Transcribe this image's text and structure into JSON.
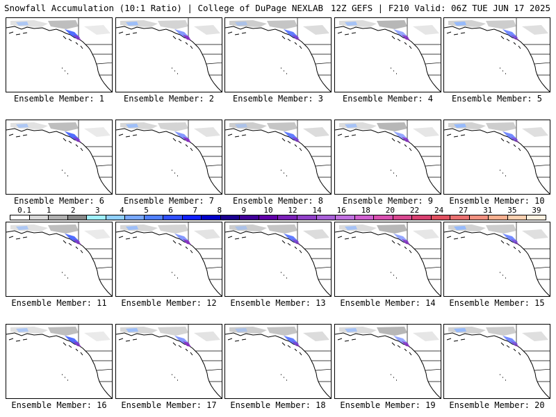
{
  "header": {
    "title_left": "Snowfall Accumulation (10:1 Ratio) | College of DuPage NEXLAB",
    "title_right": "12Z GEFS | F210 Valid: 06Z TUE JUN 17 2025"
  },
  "members": [
    "Ensemble Member: 1",
    "Ensemble Member: 2",
    "Ensemble Member: 3",
    "Ensemble Member: 4",
    "Ensemble Member: 5",
    "Ensemble Member: 6",
    "Ensemble Member: 7",
    "Ensemble Member: 8",
    "Ensemble Member: 9",
    "Ensemble Member: 10",
    "Ensemble Member: 11",
    "Ensemble Member: 12",
    "Ensemble Member: 13",
    "Ensemble Member: 14",
    "Ensemble Member: 15",
    "Ensemble Member: 16",
    "Ensemble Member: 17",
    "Ensemble Member: 18",
    "Ensemble Member: 19",
    "Ensemble Member: 20"
  ],
  "colorbar": {
    "tick_labels": [
      "0.1",
      "1",
      "2",
      "3",
      "4",
      "5",
      "6",
      "7",
      "8",
      "9",
      "10",
      "12",
      "14",
      "16",
      "18",
      "20",
      "22",
      "24",
      "27",
      "31",
      "35",
      "39"
    ],
    "colors": [
      "#ffffff",
      "#d8d8d8",
      "#b0b0b0",
      "#888888",
      "#a0f0ff",
      "#90d0ff",
      "#78a8ff",
      "#5080ff",
      "#3050ff",
      "#1020ff",
      "#0000c8",
      "#1a0090",
      "#400098",
      "#6000a8",
      "#7a20b8",
      "#9040c8",
      "#a860d8",
      "#c070e0",
      "#d060d0",
      "#d850b0",
      "#d84890",
      "#d84070",
      "#e05060",
      "#e87070",
      "#f09080",
      "#f8b090",
      "#fcd0b0",
      "#fff0e0"
    ]
  }
}
